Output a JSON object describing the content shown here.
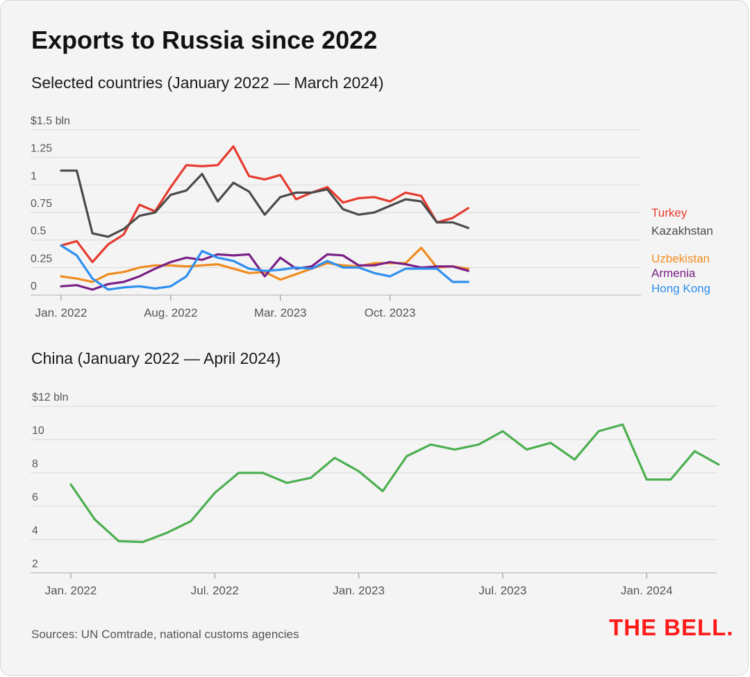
{
  "title": "Exports to Russia since 2022",
  "footer": {
    "sources": "Sources: UN Comtrade, national customs agencies",
    "logo": "THE BELL."
  },
  "chart_data": [
    {
      "type": "line",
      "title": "Selected countries (January 2022 — March 2024)",
      "ylim": [
        0,
        1.5
      ],
      "y_ticks": [
        "0",
        "0.25",
        "0.5",
        "0.75",
        "1",
        "1.25",
        "$1.5 bln"
      ],
      "x_tick_labels": [
        "Jan. 2022",
        "Aug. 2022",
        "Mar. 2023",
        "Oct. 2023"
      ],
      "x": [
        "2022-01",
        "2022-02",
        "2022-03",
        "2022-04",
        "2022-05",
        "2022-06",
        "2022-07",
        "2022-08",
        "2022-09",
        "2022-10",
        "2022-11",
        "2022-12",
        "2023-01",
        "2023-02",
        "2023-03",
        "2023-04",
        "2023-05",
        "2023-06",
        "2023-07",
        "2023-08",
        "2023-09",
        "2023-10",
        "2023-11",
        "2023-12",
        "2024-01",
        "2024-02",
        "2024-03"
      ],
      "series": [
        {
          "name": "Turkey",
          "color": "#e63a2e",
          "values": [
            0.45,
            0.49,
            0.3,
            0.46,
            0.55,
            0.82,
            0.76,
            0.98,
            1.18,
            1.17,
            1.18,
            1.35,
            1.08,
            1.05,
            1.09,
            0.87,
            0.93,
            0.98,
            0.84,
            0.88,
            0.89,
            0.85,
            0.93,
            0.9,
            0.66,
            0.7,
            0.79
          ]
        },
        {
          "name": "Kazakhstan",
          "color": "#4a4a4a",
          "values": [
            1.13,
            1.13,
            0.56,
            0.53,
            0.6,
            0.72,
            0.75,
            0.91,
            0.95,
            1.1,
            0.85,
            1.02,
            0.94,
            0.73,
            0.89,
            0.93,
            0.93,
            0.96,
            0.78,
            0.73,
            0.75,
            0.81,
            0.87,
            0.85,
            0.66,
            0.66,
            0.61
          ]
        },
        {
          "name": "Uzbekistan",
          "color": "#f08c1e",
          "values": [
            0.17,
            0.15,
            0.12,
            0.19,
            0.21,
            0.25,
            0.27,
            0.27,
            0.26,
            0.27,
            0.28,
            0.24,
            0.2,
            0.21,
            0.14,
            0.19,
            0.24,
            0.29,
            0.27,
            0.26,
            0.29,
            0.29,
            0.29,
            0.43,
            0.25,
            0.26,
            0.24
          ]
        },
        {
          "name": "Armenia",
          "color": "#7a1f86",
          "values": [
            0.08,
            0.09,
            0.05,
            0.1,
            0.12,
            0.17,
            0.24,
            0.3,
            0.34,
            0.32,
            0.37,
            0.36,
            0.37,
            0.17,
            0.34,
            0.24,
            0.26,
            0.37,
            0.36,
            0.27,
            0.27,
            0.3,
            0.28,
            0.25,
            0.26,
            0.26,
            0.22
          ]
        },
        {
          "name": "Hong Kong",
          "color": "#2d8ff0",
          "values": [
            0.45,
            0.36,
            0.15,
            0.05,
            0.07,
            0.08,
            0.06,
            0.08,
            0.17,
            0.4,
            0.34,
            0.31,
            0.24,
            0.22,
            0.23,
            0.25,
            0.24,
            0.31,
            0.25,
            0.25,
            0.2,
            0.17,
            0.24,
            0.24,
            0.24,
            0.12,
            0.12
          ]
        }
      ]
    },
    {
      "type": "line",
      "title": "China (January 2022 — April 2024)",
      "ylim": [
        2,
        12
      ],
      "y_ticks": [
        "2",
        "4",
        "6",
        "8",
        "10",
        "$12 bln"
      ],
      "x_tick_labels": [
        "Jan. 2022",
        "Jul. 2022",
        "Jan. 2023",
        "Jul. 2023",
        "Jan. 2024"
      ],
      "x": [
        "2022-01",
        "2022-02",
        "2022-03",
        "2022-04",
        "2022-05",
        "2022-06",
        "2022-07",
        "2022-08",
        "2022-09",
        "2022-10",
        "2022-11",
        "2022-12",
        "2023-01",
        "2023-02",
        "2023-03",
        "2023-04",
        "2023-05",
        "2023-06",
        "2023-07",
        "2023-08",
        "2023-09",
        "2023-10",
        "2023-11",
        "2023-12",
        "2024-01",
        "2024-02",
        "2024-03",
        "2024-04"
      ],
      "series": [
        {
          "name": "",
          "color": "#4caf50",
          "values": [
            7.3,
            5.2,
            3.9,
            3.85,
            4.4,
            5.1,
            6.8,
            8.0,
            8.0,
            7.4,
            7.7,
            8.9,
            8.1,
            6.9,
            9.0,
            9.7,
            9.4,
            9.7,
            10.5,
            9.4,
            9.8,
            8.8,
            10.5,
            10.9,
            7.6,
            7.6,
            9.3,
            8.5
          ]
        }
      ]
    }
  ]
}
